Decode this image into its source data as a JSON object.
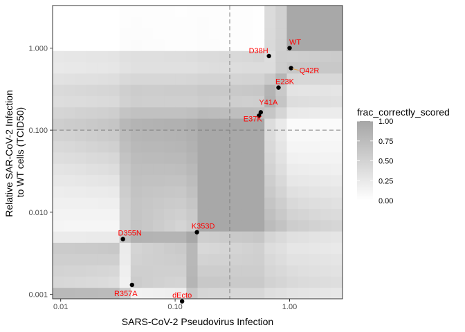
{
  "chart_data": {
    "type": "scatter",
    "title": "",
    "xlabel": "SARS-CoV-2 Pseudovirus Infection",
    "ylabel_lines": [
      "Relative SAR-CoV-2 Infection",
      "to WT cells (TCID50)"
    ],
    "xscale": "log10",
    "yscale": "log10",
    "xlim": [
      0.0085,
      2.9
    ],
    "ylim": [
      0.00088,
      3.3
    ],
    "xticks": [
      {
        "value": 0.01,
        "label": "0.01"
      },
      {
        "value": 0.1,
        "label": "0.10"
      },
      {
        "value": 1,
        "label": "1.00"
      }
    ],
    "yticks": [
      {
        "value": 0.001,
        "label": "0.001"
      },
      {
        "value": 0.01,
        "label": "0.010"
      },
      {
        "value": 0.1,
        "label": "0.100"
      },
      {
        "value": 1,
        "label": "1.000"
      }
    ],
    "threshold_x": 0.3,
    "threshold_y": 0.1,
    "grid": false,
    "legend_position": "right",
    "label_color": "#ff0000",
    "point_color": "#000000",
    "legend": {
      "title": "frac_correctly_scored",
      "breaks": [
        {
          "value": 1.0,
          "label": "1.00"
        },
        {
          "value": 0.75,
          "label": "0.75"
        },
        {
          "value": 0.5,
          "label": "0.50"
        },
        {
          "value": 0.25,
          "label": "0.25"
        },
        {
          "value": 0.0,
          "label": "0.00"
        }
      ],
      "low_color": "#ffffff",
      "high_color": "#a6a6a6"
    },
    "points": [
      {
        "label": "WT",
        "x": 1.0,
        "y": 1.0
      },
      {
        "label": "D38H",
        "x": 0.66,
        "y": 0.8
      },
      {
        "label": "Q42R",
        "x": 1.03,
        "y": 0.57
      },
      {
        "label": "E23K",
        "x": 0.8,
        "y": 0.33
      },
      {
        "label": "Y41A",
        "x": 0.56,
        "y": 0.165
      },
      {
        "label": "E37K",
        "x": 0.54,
        "y": 0.15
      },
      {
        "label": "K353D",
        "x": 0.155,
        "y": 0.0057
      },
      {
        "label": "D355N",
        "x": 0.035,
        "y": 0.0047
      },
      {
        "label": "R357A",
        "x": 0.042,
        "y": 0.0013
      },
      {
        "label": "dEcto",
        "x": 0.115,
        "y": 0.00082
      }
    ]
  }
}
